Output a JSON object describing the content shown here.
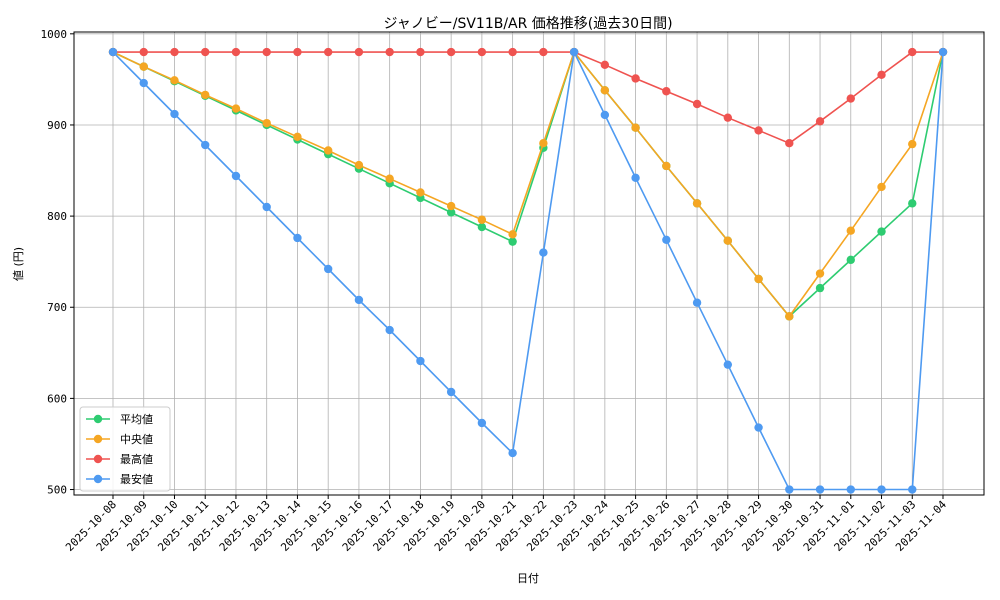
{
  "chart_data": {
    "type": "line",
    "title": "ジャノビー/SV11B/AR 価格推移(過去30日間)",
    "xlabel": "日付",
    "ylabel": "値 (円)",
    "ylim": [
      494,
      1002
    ],
    "yticks": [
      500,
      600,
      700,
      800,
      900,
      1000
    ],
    "grid": true,
    "legend_position": "bottom-left",
    "categories": [
      "2025-10-08",
      "2025-10-09",
      "2025-10-10",
      "2025-10-11",
      "2025-10-12",
      "2025-10-13",
      "2025-10-14",
      "2025-10-15",
      "2025-10-16",
      "2025-10-17",
      "2025-10-18",
      "2025-10-19",
      "2025-10-20",
      "2025-10-21",
      "2025-10-22",
      "2025-10-23",
      "2025-10-24",
      "2025-10-25",
      "2025-10-26",
      "2025-10-27",
      "2025-10-28",
      "2025-10-29",
      "2025-10-30",
      "2025-10-31",
      "2025-11-01",
      "2025-11-02",
      "2025-11-03",
      "2025-11-04"
    ],
    "series": [
      {
        "name": "平均値",
        "color": "#2ecc71",
        "values": [
          980,
          964,
          948,
          932,
          916,
          900,
          884,
          868,
          852,
          836,
          820,
          804,
          788,
          772,
          875,
          980,
          938,
          897,
          855,
          814,
          773,
          731,
          690,
          721,
          752,
          783,
          814,
          980
        ]
      },
      {
        "name": "中央値",
        "color": "#f5a623",
        "values": [
          980,
          964,
          949,
          933,
          918,
          902,
          887,
          872,
          856,
          841,
          826,
          811,
          796,
          780,
          880,
          980,
          938,
          897,
          855,
          814,
          773,
          731,
          690,
          737,
          784,
          832,
          879,
          980
        ]
      },
      {
        "name": "最高値",
        "color": "#ef5350",
        "values": [
          980,
          980,
          980,
          980,
          980,
          980,
          980,
          980,
          980,
          980,
          980,
          980,
          980,
          980,
          980,
          980,
          966,
          951,
          937,
          923,
          908,
          894,
          880,
          904,
          929,
          955,
          980,
          980
        ]
      },
      {
        "name": "最安値",
        "color": "#4e9af1",
        "values": [
          980,
          946,
          912,
          878,
          844,
          810,
          776,
          742,
          708,
          675,
          641,
          607,
          573,
          540,
          760,
          980,
          911,
          842,
          774,
          705,
          637,
          568,
          500,
          500,
          500,
          500,
          500,
          980
        ]
      }
    ]
  }
}
